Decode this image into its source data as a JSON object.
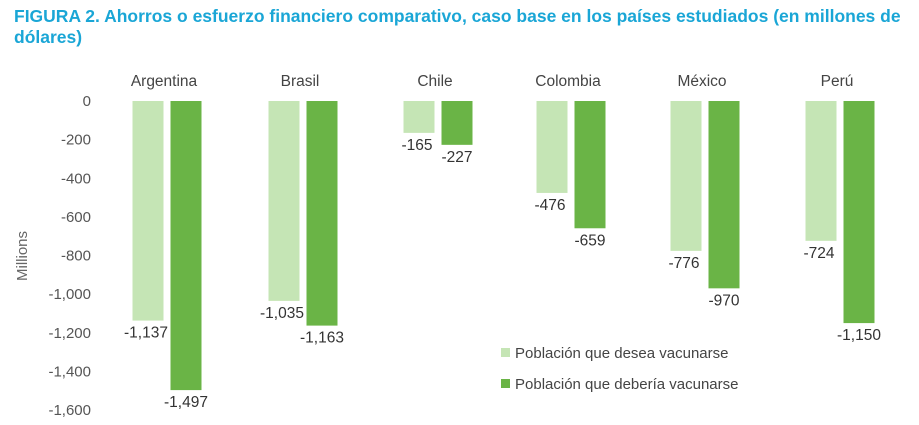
{
  "chart_data": {
    "type": "bar",
    "title": "FIGURA 2. Ahorros o esfuerzo financiero comparativo, caso base en los países estudiados (en millones de dólares)",
    "ylabel": "Millions",
    "xlabel": "",
    "categories": [
      "Argentina",
      "Brasil",
      "Chile",
      "Colombia",
      "México",
      "Perú"
    ],
    "ylim": [
      -1600,
      0
    ],
    "yticks": [
      0,
      -200,
      -400,
      -600,
      -800,
      -1000,
      -1200,
      -1400,
      -1600
    ],
    "ytick_labels": [
      "0",
      "-200",
      "-400",
      "-600",
      "-800",
      "-1,000",
      "-1,200",
      "-1,400",
      "-1,600"
    ],
    "legend_position": "bottom-right",
    "series": [
      {
        "name": "Población que desea vacunarse",
        "color": "#c5e5b5",
        "values": [
          -1137,
          -1035,
          -165,
          -476,
          -776,
          -724
        ],
        "labels": [
          "-1,137",
          "-1,035",
          "-165",
          "-476",
          "-776",
          "-724"
        ]
      },
      {
        "name": "Población que debería vacunarse",
        "color": "#6ab446",
        "values": [
          -1497,
          -1163,
          -227,
          -659,
          -970,
          -1150
        ],
        "labels": [
          "-1,497",
          "-1,163",
          "-227",
          "-659",
          "-970",
          "-1,150"
        ]
      }
    ]
  }
}
